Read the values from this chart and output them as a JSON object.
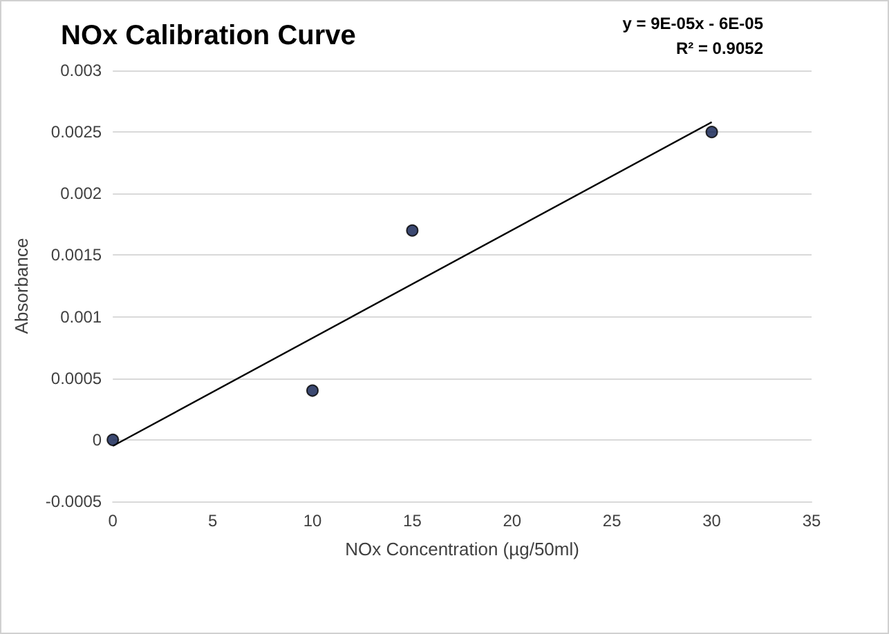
{
  "chart_data": {
    "type": "scatter",
    "title": "NOx Calibration Curve",
    "xlabel": "NOx Concentration (µg/50ml)",
    "ylabel": "Absorbance",
    "annotations": [
      "y = 9E-05x - 6E-05",
      "R² = 0.9052"
    ],
    "series": [
      {
        "color": "#0b1c4d",
        "x": [
          0,
          10,
          15,
          30
        ],
        "values": [
          0,
          0.0004,
          0.0017,
          0.0025
        ],
        "marker": "circle"
      },
      {
        "type": "line",
        "color": "#000000",
        "x": [
          0,
          30
        ],
        "values": [
          -5e-05,
          0.00258
        ],
        "marker": "none"
      }
    ],
    "xlim": [
      0,
      35
    ],
    "xticks": [
      0,
      5,
      10,
      15,
      20,
      25,
      30,
      35
    ],
    "ylim": [
      -0.0005,
      0.003
    ],
    "yticks": [
      -0.0005,
      0,
      0.0005,
      0.001,
      0.0015,
      0.002,
      0.0025,
      0.003
    ],
    "grid": "y"
  }
}
